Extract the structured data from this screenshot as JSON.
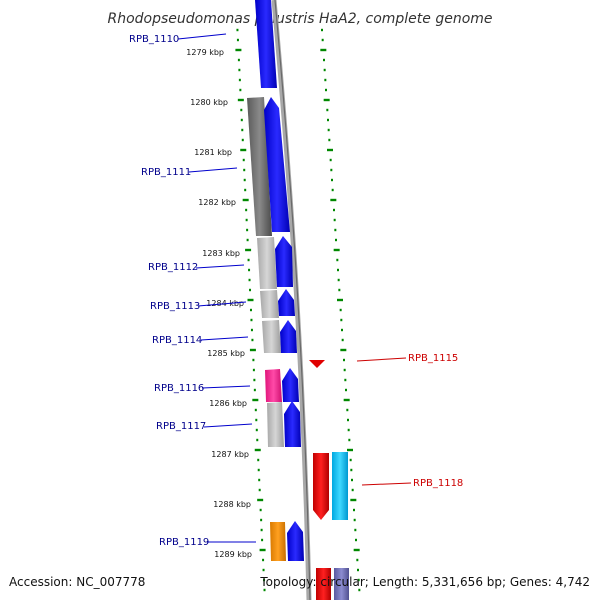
{
  "title": "Rhodopseudomonas palustris HaA2, complete genome",
  "accession": "Accession: NC_007778",
  "topology": "Topology: circular; Length: 5,331,656 bp; Genes: 4,742",
  "colors": {
    "forward_cds": "#0000ee",
    "reverse_cds": "#dd0000",
    "forward_label": "#00008b",
    "reverse_label": "#cc0000",
    "scale_ticks": "#008800",
    "backbone": "#888888"
  },
  "ticks": [
    "1279 kbp",
    "1280 kbp",
    "1281 kbp",
    "1282 kbp",
    "1283 kbp",
    "1284 kbp",
    "1285 kbp",
    "1286 kbp",
    "1287 kbp",
    "1288 kbp",
    "1289 kbp"
  ],
  "genes": [
    {
      "label": "RPB_1110",
      "strand": "forward"
    },
    {
      "label": "RPB_1111",
      "strand": "forward"
    },
    {
      "label": "RPB_1112",
      "strand": "forward"
    },
    {
      "label": "RPB_1113",
      "strand": "forward"
    },
    {
      "label": "RPB_1114",
      "strand": "forward"
    },
    {
      "label": "RPB_1115",
      "strand": "reverse"
    },
    {
      "label": "RPB_1116",
      "strand": "forward"
    },
    {
      "label": "RPB_1117",
      "strand": "forward"
    },
    {
      "label": "RPB_1118",
      "strand": "reverse"
    },
    {
      "label": "RPB_1119",
      "strand": "forward"
    }
  ]
}
